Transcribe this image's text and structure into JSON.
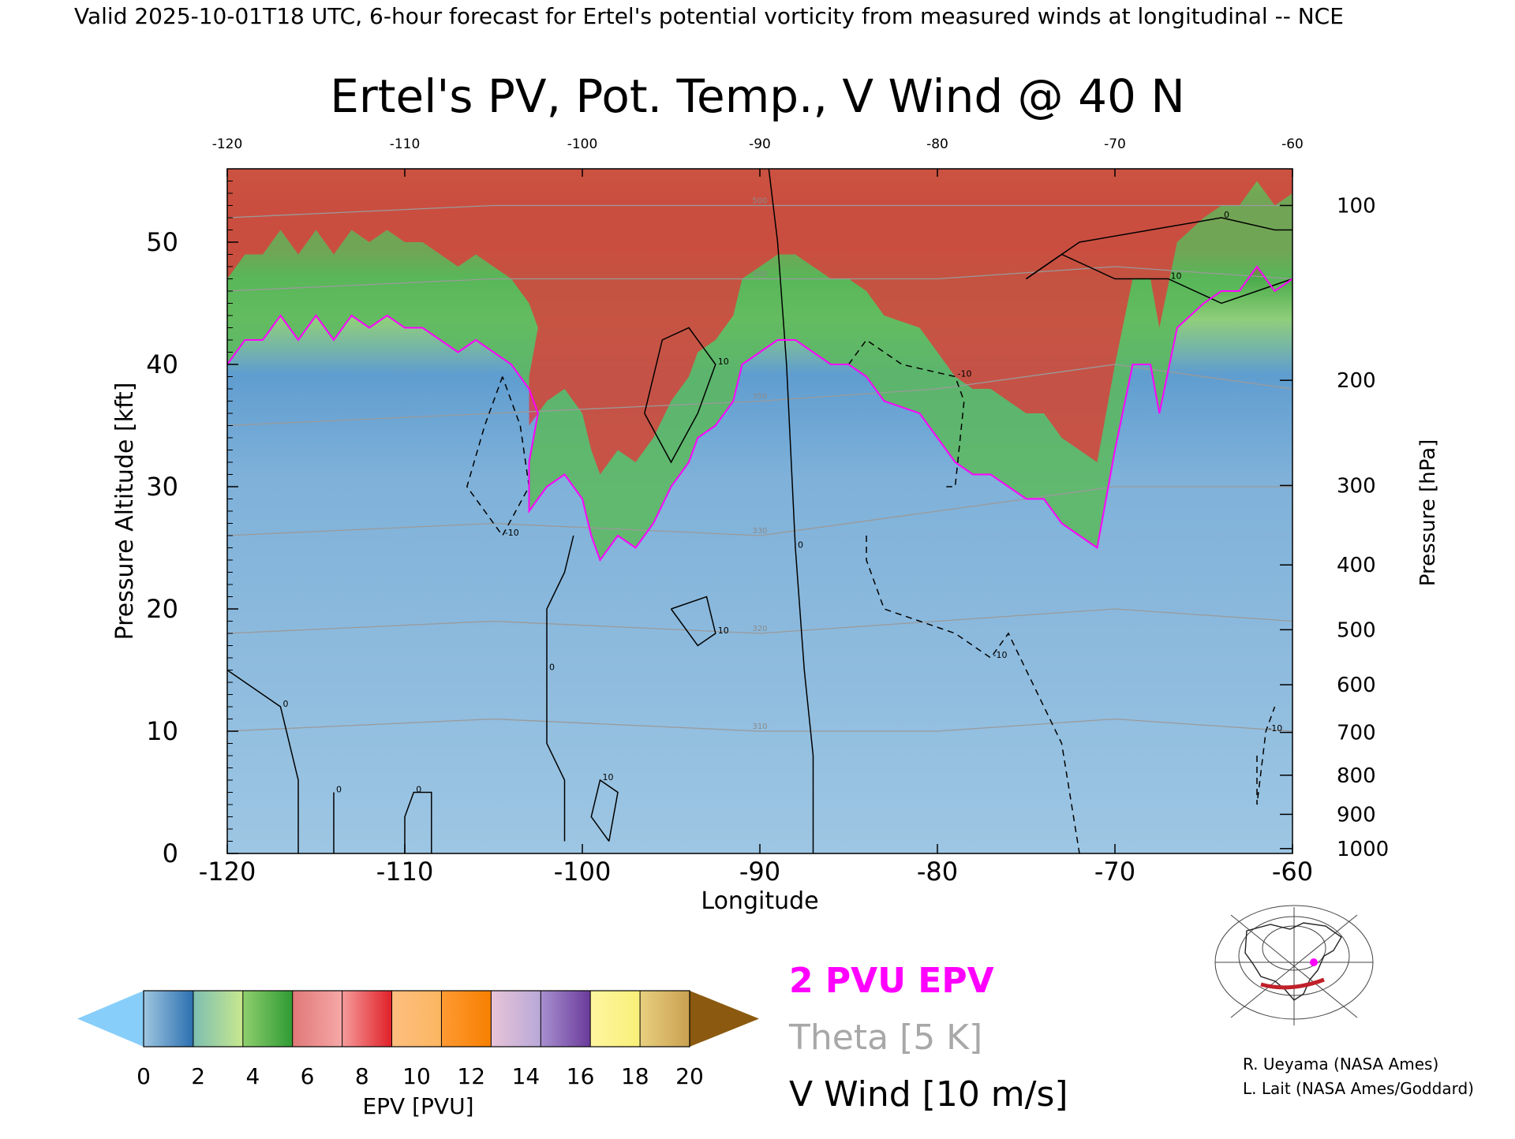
{
  "header_text": "Valid 2025-10-01T18 UTC, 6-hour forecast for Ertel's potential vorticity from measured winds at longitudinal -- NCE",
  "chart_data": {
    "type": "heatmap",
    "title": "Ertel's PV, Pot. Temp., V Wind @ 40 N",
    "xlabel": "Longitude",
    "ylabel_left": "Pressure Altitude [kft]",
    "ylabel_right": "Pressure [hPa]",
    "x_range": [
      -120,
      -60
    ],
    "y_range_kft": [
      0,
      56
    ],
    "x_ticks": [
      -120,
      -110,
      -100,
      -90,
      -80,
      -70,
      -60
    ],
    "top_ticks": [
      -120,
      -110,
      -100,
      -90,
      -80,
      -70,
      -60
    ],
    "left_ticks_kft": [
      0,
      10,
      20,
      30,
      40,
      50
    ],
    "right_ticks": [
      {
        "hpa": 100,
        "kft": 53
      },
      {
        "hpa": 200,
        "kft": 38.7
      },
      {
        "hpa": 300,
        "kft": 30.1
      },
      {
        "hpa": 400,
        "kft": 23.6
      },
      {
        "hpa": 500,
        "kft": 18.3
      },
      {
        "hpa": 600,
        "kft": 13.8
      },
      {
        "hpa": 700,
        "kft": 9.9
      },
      {
        "hpa": 800,
        "kft": 6.4
      },
      {
        "hpa": 900,
        "kft": 3.2
      },
      {
        "hpa": 1000,
        "kft": 0.4
      }
    ],
    "pv_2pvu_contour": [
      [
        -120,
        40
      ],
      [
        -119,
        42
      ],
      [
        -118,
        42
      ],
      [
        -117,
        44
      ],
      [
        -116,
        42
      ],
      [
        -115,
        44
      ],
      [
        -114,
        42
      ],
      [
        -113,
        44
      ],
      [
        -112,
        43
      ],
      [
        -111,
        44
      ],
      [
        -110,
        43
      ],
      [
        -109,
        43
      ],
      [
        -108,
        42
      ],
      [
        -107,
        41
      ],
      [
        -106,
        42
      ],
      [
        -105,
        41
      ],
      [
        -104,
        40
      ],
      [
        -103,
        38
      ],
      [
        -102.5,
        36
      ],
      [
        -103,
        32
      ],
      [
        -103,
        28
      ],
      [
        -102,
        30
      ],
      [
        -101,
        31
      ],
      [
        -100,
        29
      ],
      [
        -99.5,
        26
      ],
      [
        -99,
        24
      ],
      [
        -98,
        26
      ],
      [
        -97,
        25
      ],
      [
        -96,
        27
      ],
      [
        -95,
        30
      ],
      [
        -94,
        32
      ],
      [
        -93.5,
        34
      ],
      [
        -92.5,
        35
      ],
      [
        -91.5,
        37
      ],
      [
        -91,
        40
      ],
      [
        -90,
        41
      ],
      [
        -89,
        42
      ],
      [
        -88,
        42
      ],
      [
        -87,
        41
      ],
      [
        -86,
        40
      ],
      [
        -85,
        40
      ],
      [
        -84,
        39
      ],
      [
        -83,
        37
      ],
      [
        -81,
        36
      ],
      [
        -80,
        34
      ],
      [
        -79,
        32
      ],
      [
        -78,
        31
      ],
      [
        -77,
        31
      ],
      [
        -76,
        30
      ],
      [
        -75,
        29
      ],
      [
        -74,
        29
      ],
      [
        -73,
        27
      ],
      [
        -72,
        26
      ],
      [
        -71,
        25
      ],
      [
        -70,
        33
      ],
      [
        -69,
        40
      ],
      [
        -68,
        40
      ],
      [
        -67.5,
        36
      ],
      [
        -66.5,
        43
      ],
      [
        -65,
        45
      ],
      [
        -64,
        46
      ],
      [
        -63,
        46
      ],
      [
        -62,
        48
      ],
      [
        -61,
        46
      ],
      [
        -60,
        47
      ]
    ],
    "v_wind_contours": [
      {
        "label": "0",
        "style": "solid",
        "points": [
          [
            -89.5,
            56
          ],
          [
            -89,
            50
          ],
          [
            -88.5,
            40
          ],
          [
            -88,
            25
          ],
          [
            -87.5,
            15
          ],
          [
            -87,
            8
          ],
          [
            -87,
            0
          ]
        ]
      },
      {
        "label": "0",
        "style": "solid",
        "points": [
          [
            -114,
            0
          ],
          [
            -114,
            5
          ]
        ]
      },
      {
        "label": "0",
        "style": "solid",
        "points": [
          [
            -108.5,
            0
          ],
          [
            -108.5,
            5
          ],
          [
            -109.5,
            5
          ],
          [
            -110,
            3
          ],
          [
            -110,
            0
          ]
        ]
      },
      {
        "label": "0",
        "style": "solid",
        "points": [
          [
            -101,
            1
          ],
          [
            -101,
            6
          ],
          [
            -102,
            9
          ],
          [
            -102,
            15
          ],
          [
            -102,
            20
          ],
          [
            -101,
            23
          ],
          [
            -100.5,
            26
          ]
        ]
      },
      {
        "label": "0",
        "style": "solid",
        "points": [
          [
            -116,
            0
          ],
          [
            -116,
            6
          ],
          [
            -117,
            12
          ],
          [
            -119,
            14
          ],
          [
            -120,
            15
          ]
        ]
      },
      {
        "label": "10",
        "style": "solid",
        "points": [
          [
            -96.5,
            36
          ],
          [
            -95.5,
            42
          ],
          [
            -94,
            43
          ],
          [
            -92.5,
            40
          ],
          [
            -93.5,
            36
          ],
          [
            -95,
            32
          ],
          [
            -96.5,
            36
          ]
        ]
      },
      {
        "label": "-10",
        "style": "dashed",
        "points": [
          [
            -104.5,
            39
          ],
          [
            -105.5,
            35
          ],
          [
            -106.5,
            30
          ],
          [
            -104.5,
            26
          ],
          [
            -103,
            30
          ],
          [
            -103.5,
            35
          ],
          [
            -104.5,
            39
          ]
        ]
      },
      {
        "label": "-10",
        "style": "dashed",
        "points": [
          [
            -85,
            40
          ],
          [
            -84,
            42
          ],
          [
            -82,
            40
          ],
          [
            -79,
            39
          ],
          [
            -78.5,
            37
          ],
          [
            -79,
            30
          ],
          [
            -79.5,
            30
          ]
        ]
      },
      {
        "label": "-10",
        "style": "dashed",
        "points": [
          [
            -84,
            26
          ],
          [
            -84,
            24
          ],
          [
            -83,
            20
          ],
          [
            -79,
            18
          ],
          [
            -77,
            16
          ],
          [
            -76,
            18
          ],
          [
            -73,
            9
          ],
          [
            -72,
            0
          ]
        ]
      },
      {
        "label": "-10",
        "style": "dashed",
        "points": [
          [
            -62,
            8
          ],
          [
            -62,
            4
          ],
          [
            -61.5,
            10
          ],
          [
            -61,
            12
          ]
        ]
      },
      {
        "label": "10",
        "style": "solid",
        "points": [
          [
            -75,
            47
          ],
          [
            -73,
            49
          ],
          [
            -70,
            47
          ],
          [
            -67,
            47
          ],
          [
            -64,
            45
          ],
          [
            -62,
            46
          ],
          [
            -60,
            47
          ]
        ]
      },
      {
        "label": "0",
        "style": "solid",
        "points": [
          [
            -75,
            47
          ],
          [
            -72,
            50
          ],
          [
            -68,
            51
          ],
          [
            -64,
            52
          ],
          [
            -61,
            51
          ],
          [
            -60,
            51
          ]
        ]
      },
      {
        "label": "10",
        "style": "solid",
        "points": [
          [
            -98.5,
            1
          ],
          [
            -98,
            5
          ],
          [
            -99,
            6
          ],
          [
            -99.5,
            3
          ],
          [
            -98.5,
            1
          ]
        ]
      },
      {
        "label": "10",
        "style": "solid",
        "points": [
          [
            -95,
            20
          ],
          [
            -93,
            21
          ],
          [
            -92.5,
            18
          ],
          [
            -93.5,
            17
          ],
          [
            -95,
            20
          ]
        ]
      }
    ],
    "theta_contours": [
      {
        "label": "310",
        "points": [
          [
            -120,
            10
          ],
          [
            -105,
            11
          ],
          [
            -90,
            10
          ],
          [
            -80,
            10
          ],
          [
            -70,
            11
          ],
          [
            -60,
            10
          ]
        ]
      },
      {
        "label": "320",
        "points": [
          [
            -120,
            18
          ],
          [
            -105,
            19
          ],
          [
            -90,
            18
          ],
          [
            -80,
            19
          ],
          [
            -70,
            20
          ],
          [
            -60,
            19
          ]
        ]
      },
      {
        "label": "330",
        "points": [
          [
            -120,
            26
          ],
          [
            -105,
            27
          ],
          [
            -90,
            26
          ],
          [
            -80,
            28
          ],
          [
            -70,
            30
          ],
          [
            -60,
            30
          ]
        ]
      },
      {
        "label": "350",
        "points": [
          [
            -120,
            35
          ],
          [
            -105,
            36
          ],
          [
            -90,
            37
          ],
          [
            -80,
            38
          ],
          [
            -70,
            40
          ],
          [
            -60,
            38
          ]
        ]
      },
      {
        "label": "400",
        "points": [
          [
            -120,
            46
          ],
          [
            -105,
            47
          ],
          [
            -90,
            47
          ],
          [
            -80,
            47
          ],
          [
            -70,
            48
          ],
          [
            -60,
            47
          ]
        ]
      },
      {
        "label": "500",
        "points": [
          [
            -120,
            52
          ],
          [
            -105,
            53
          ],
          [
            -90,
            53
          ],
          [
            -80,
            53
          ],
          [
            -70,
            53
          ],
          [
            -60,
            53
          ]
        ]
      }
    ],
    "colorbar": {
      "label": "EPV [PVU]",
      "ticks": [
        0,
        2,
        4,
        6,
        8,
        10,
        12,
        14,
        16,
        18,
        20
      ],
      "under_color": "#87cefa",
      "over_color": "#8b5a10",
      "segments": [
        [
          "#9ec6e0",
          "#2b6fb0"
        ],
        [
          "#7dbfb0",
          "#c9e88f"
        ],
        [
          "#8fcf6e",
          "#2e9a33"
        ],
        [
          "#e07878",
          "#f7a8a8"
        ],
        [
          "#f59b9b",
          "#e01f27"
        ],
        [
          "#fdbf80",
          "#fcb660"
        ],
        [
          "#ff9a33",
          "#f77f00"
        ],
        [
          "#e8c4d8",
          "#b8a8d8"
        ],
        [
          "#a890d0",
          "#6a3a9a"
        ],
        [
          "#fff5a0",
          "#f8f078"
        ],
        [
          "#e8d080",
          "#c8a050"
        ]
      ]
    },
    "legend": [
      {
        "text": "2 PVU EPV",
        "color": "#ff00ff"
      },
      {
        "text": "Theta [5 K]",
        "color": "#a0a0a0"
      },
      {
        "text": "V Wind [10 m/s]",
        "color": "#000000"
      }
    ],
    "credits": [
      "R. Ueyama (NASA Ames)",
      "L. Lait (NASA Ames/Goddard)"
    ]
  }
}
